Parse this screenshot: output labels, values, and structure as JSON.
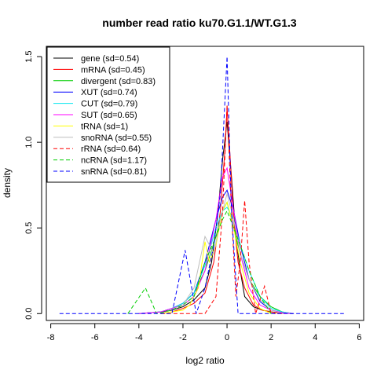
{
  "chart_data": {
    "type": "line",
    "title": "number read ratio ku70.G1.1/WT.G1.3",
    "xlabel": "log2 ratio",
    "ylabel": "density",
    "xlim": [
      -8.2,
      6.2
    ],
    "ylim": [
      -0.04,
      1.56
    ],
    "xticks": [
      "-8",
      "-6",
      "-4",
      "-2",
      "0",
      "2",
      "4",
      "6"
    ],
    "yticks": [
      "0.0",
      "0.5",
      "1.0",
      "1.5"
    ],
    "legend_position": "top-left",
    "series": [
      {
        "name": "gene (sd=0.54)",
        "color": "#000000",
        "dash": "solid",
        "x": [
          -4,
          -3,
          -2.5,
          -2,
          -1.5,
          -1,
          -0.7,
          -0.4,
          -0.2,
          0,
          0.2,
          0.4,
          0.6,
          0.8,
          1.2,
          1.6,
          2,
          2.5,
          3
        ],
        "y": [
          0,
          0.01,
          0.02,
          0.04,
          0.08,
          0.15,
          0.3,
          0.6,
          0.9,
          1.12,
          0.8,
          0.45,
          0.25,
          0.1,
          0.04,
          0.02,
          0.01,
          0.003,
          0
        ]
      },
      {
        "name": "mRNA (sd=0.45)",
        "color": "#ff0000",
        "dash": "solid",
        "x": [
          -3,
          -2.5,
          -2,
          -1.5,
          -1,
          -0.6,
          -0.3,
          -0.1,
          0,
          0.1,
          0.3,
          0.5,
          0.8,
          1.2,
          1.6,
          2,
          2.5
        ],
        "y": [
          0,
          0.01,
          0.03,
          0.06,
          0.12,
          0.3,
          0.6,
          0.95,
          1.2,
          1.0,
          0.55,
          0.3,
          0.15,
          0.05,
          0.02,
          0.01,
          0
        ]
      },
      {
        "name": "divergent (sd=0.83)",
        "color": "#00cd00",
        "dash": "solid",
        "x": [
          -4,
          -3,
          -2.5,
          -2,
          -1.5,
          -1,
          -0.5,
          -0.2,
          0,
          0.3,
          0.6,
          1,
          1.5,
          2,
          2.5,
          3
        ],
        "y": [
          0,
          0.01,
          0.03,
          0.06,
          0.12,
          0.25,
          0.45,
          0.6,
          0.65,
          0.5,
          0.35,
          0.2,
          0.1,
          0.04,
          0.01,
          0
        ]
      },
      {
        "name": "XUT (sd=0.74)",
        "color": "#0000ff",
        "dash": "solid",
        "x": [
          -4,
          -3,
          -2.5,
          -2,
          -1.5,
          -1,
          -0.5,
          -0.2,
          0,
          0.3,
          0.6,
          1,
          1.5,
          2,
          2.5,
          3
        ],
        "y": [
          0,
          0.01,
          0.03,
          0.06,
          0.12,
          0.3,
          0.55,
          0.68,
          0.72,
          0.6,
          0.4,
          0.2,
          0.07,
          0.02,
          0.005,
          0
        ]
      },
      {
        "name": "CUT (sd=0.79)",
        "color": "#00e5ee",
        "dash": "solid",
        "x": [
          -4,
          -3,
          -2.5,
          -2,
          -1.5,
          -1,
          -0.5,
          -0.2,
          0,
          0.3,
          0.6,
          1,
          1.5,
          2,
          2.5,
          3
        ],
        "y": [
          0,
          0.01,
          0.03,
          0.06,
          0.12,
          0.28,
          0.5,
          0.6,
          0.62,
          0.55,
          0.4,
          0.25,
          0.1,
          0.03,
          0.01,
          0
        ]
      },
      {
        "name": "SUT (sd=0.65)",
        "color": "#ff00ff",
        "dash": "solid",
        "x": [
          -4,
          -3,
          -2.5,
          -2,
          -1.5,
          -1,
          -0.5,
          -0.2,
          0,
          0.3,
          0.6,
          1,
          1.5,
          2,
          2.5,
          3
        ],
        "y": [
          0,
          0.01,
          0.03,
          0.05,
          0.1,
          0.25,
          0.55,
          0.8,
          0.85,
          0.6,
          0.35,
          0.15,
          0.05,
          0.02,
          0.005,
          0
        ]
      },
      {
        "name": "tRNA (sd=1)",
        "color": "#ffff00",
        "dash": "solid",
        "x": [
          -3,
          -2,
          -1.7,
          -1.3,
          -1,
          -0.8,
          -0.5,
          -0.2,
          0,
          0.3,
          0.6,
          1,
          1.5,
          2
        ],
        "y": [
          0,
          0.02,
          0.05,
          0.15,
          0.42,
          0.3,
          0.4,
          0.6,
          0.65,
          0.5,
          0.3,
          0.12,
          0.03,
          0
        ]
      },
      {
        "name": "snoRNA (sd=0.55)",
        "color": "#bebebe",
        "dash": "solid",
        "x": [
          -3,
          -2,
          -1.5,
          -1,
          -0.6,
          -0.3,
          0,
          0.3,
          0.6,
          1,
          1.5,
          2,
          2.5
        ],
        "y": [
          0,
          0.05,
          0.15,
          0.45,
          0.35,
          0.55,
          0.7,
          0.55,
          0.35,
          0.2,
          0.08,
          0.02,
          0
        ]
      },
      {
        "name": "rRNA (sd=0.64)",
        "color": "#ff0000",
        "dash": "dashed",
        "x": [
          -3,
          -1,
          -0.5,
          -0.2,
          0,
          0.2,
          0.4,
          0.6,
          0.8,
          1,
          1.3,
          1.7,
          2,
          2.5
        ],
        "y": [
          0,
          0,
          0.1,
          0.6,
          1.22,
          0.6,
          0.1,
          0.3,
          0.66,
          0.3,
          0,
          0.16,
          0,
          0
        ]
      },
      {
        "name": "ncRNA (sd=1.17)",
        "color": "#00cd00",
        "dash": "dashed",
        "x": [
          -4.5,
          -3.7,
          -3.2,
          -2.5,
          -2,
          -1.5,
          -1,
          -0.5,
          -0.2,
          0,
          0.3,
          0.6,
          1,
          1.5,
          2
        ],
        "y": [
          0,
          0.15,
          0,
          0.02,
          0.05,
          0.1,
          0.3,
          0.45,
          0.55,
          0.6,
          0.5,
          0.4,
          0.25,
          0.1,
          0
        ]
      },
      {
        "name": "snRNA (sd=0.81)",
        "color": "#0000ff",
        "dash": "dashed",
        "x": [
          -7.6,
          -2.5,
          -1.9,
          -1.4,
          -1,
          -0.6,
          -0.3,
          0,
          0.2,
          0.4,
          0.5,
          5.3
        ],
        "y": [
          0,
          0,
          0.37,
          0,
          0.15,
          0.4,
          0.7,
          1.5,
          0.6,
          0.2,
          0,
          0
        ]
      }
    ]
  }
}
